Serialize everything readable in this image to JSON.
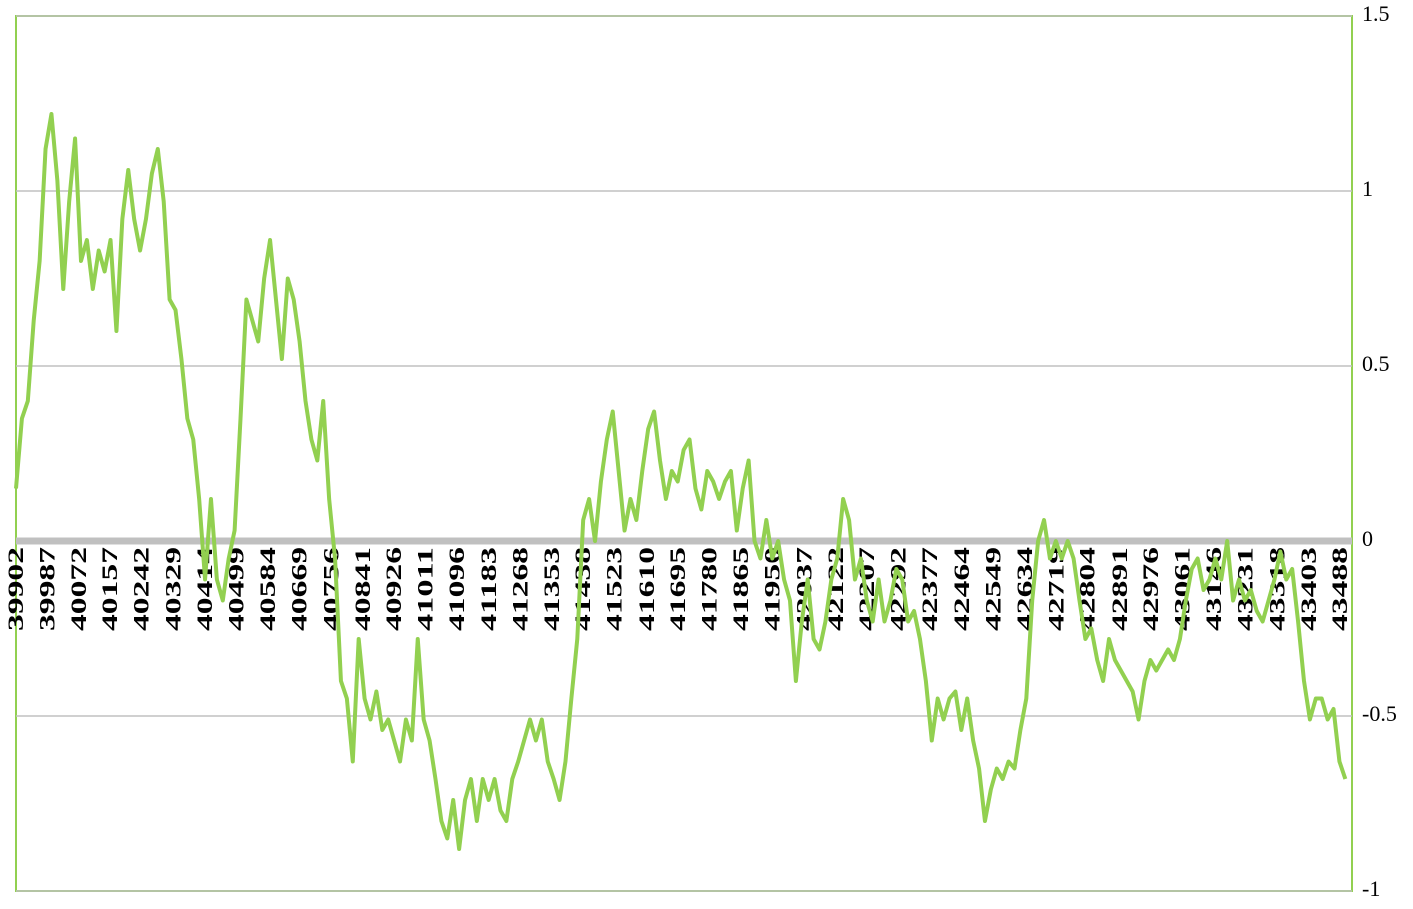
{
  "chart_data": {
    "type": "line",
    "x": [
      39902,
      39918,
      39934,
      39950,
      39966,
      39982,
      39998,
      40014,
      40030,
      40046,
      40062,
      40078,
      40094,
      40110,
      40126,
      40142,
      40158,
      40174,
      40190,
      40206,
      40222,
      40238,
      40254,
      40270,
      40286,
      40302,
      40318,
      40334,
      40350,
      40366,
      40382,
      40398,
      40414,
      40430,
      40446,
      40462,
      40478,
      40494,
      40510,
      40526,
      40542,
      40558,
      40574,
      40590,
      40606,
      40622,
      40638,
      40654,
      40670,
      40686,
      40702,
      40718,
      40734,
      40750,
      40766,
      40782,
      40798,
      40814,
      40830,
      40846,
      40862,
      40878,
      40894,
      40910,
      40926,
      40942,
      40958,
      40974,
      40990,
      41006,
      41022,
      41038,
      41054,
      41070,
      41086,
      41102,
      41118,
      41134,
      41150,
      41166,
      41182,
      41198,
      41214,
      41230,
      41246,
      41262,
      41278,
      41294,
      41310,
      41326,
      41342,
      41358,
      41374,
      41390,
      41406,
      41422,
      41438,
      41454,
      41470,
      41486,
      41502,
      41518,
      41534,
      41550,
      41566,
      41582,
      41598,
      41614,
      41630,
      41646,
      41662,
      41678,
      41694,
      41710,
      41726,
      41742,
      41758,
      41774,
      41790,
      41806,
      41822,
      41838,
      41854,
      41870,
      41886,
      41902,
      41918,
      41934,
      41950,
      41966,
      41982,
      41998,
      42014,
      42030,
      42046,
      42062,
      42078,
      42094,
      42110,
      42126,
      42142,
      42158,
      42174,
      42190,
      42206,
      42222,
      42238,
      42254,
      42270,
      42286,
      42302,
      42318,
      42334,
      42350,
      42366,
      42382,
      42398,
      42414,
      42430,
      42446,
      42462,
      42478,
      42494,
      42510,
      42526,
      42542,
      42558,
      42574,
      42590,
      42606,
      42622,
      42638,
      42654,
      42670,
      42686,
      42702,
      42718,
      42734,
      42750,
      42766,
      42782,
      42798,
      42814,
      42830,
      42846,
      42862,
      42878,
      42894,
      42910,
      42926,
      42942,
      42958,
      42974,
      42990,
      43006,
      43022,
      43038,
      43054,
      43070,
      43086,
      43102,
      43118,
      43134,
      43150,
      43166,
      43182,
      43198,
      43214,
      43230,
      43246,
      43262,
      43278,
      43294,
      43310,
      43326,
      43342,
      43358,
      43374,
      43390,
      43406,
      43422,
      43438,
      43454,
      43470,
      43486,
      43502
    ],
    "series": [
      {
        "color": "#92d050",
        "values": [
          0.15,
          0.35,
          0.4,
          0.63,
          0.8,
          1.12,
          1.22,
          1.03,
          0.72,
          0.97,
          1.15,
          0.8,
          0.86,
          0.72,
          0.83,
          0.77,
          0.86,
          0.6,
          0.92,
          1.06,
          0.92,
          0.83,
          0.92,
          1.05,
          1.12,
          0.97,
          0.69,
          0.66,
          0.52,
          0.35,
          0.29,
          0.12,
          -0.11,
          0.12,
          -0.11,
          -0.17,
          -0.05,
          0.03,
          0.35,
          0.69,
          0.63,
          0.57,
          0.75,
          0.86,
          0.69,
          0.52,
          0.75,
          0.69,
          0.57,
          0.4,
          0.29,
          0.23,
          0.4,
          0.12,
          -0.05,
          -0.4,
          -0.45,
          -0.63,
          -0.28,
          -0.45,
          -0.51,
          -0.43,
          -0.54,
          -0.51,
          -0.57,
          -0.63,
          -0.51,
          -0.57,
          -0.28,
          -0.51,
          -0.57,
          -0.68,
          -0.8,
          -0.85,
          -0.74,
          -0.88,
          -0.74,
          -0.68,
          -0.8,
          -0.68,
          -0.74,
          -0.68,
          -0.77,
          -0.8,
          -0.68,
          -0.63,
          -0.57,
          -0.51,
          -0.57,
          -0.51,
          -0.63,
          -0.68,
          -0.74,
          -0.63,
          -0.45,
          -0.28,
          0.06,
          0.12,
          0,
          0.17,
          0.29,
          0.37,
          0.2,
          0.03,
          0.12,
          0.06,
          0.2,
          0.32,
          0.37,
          0.23,
          0.12,
          0.2,
          0.17,
          0.26,
          0.29,
          0.15,
          0.09,
          0.2,
          0.17,
          0.12,
          0.17,
          0.2,
          0.03,
          0.15,
          0.23,
          0,
          -0.05,
          0.06,
          -0.05,
          0,
          -0.11,
          -0.17,
          -0.4,
          -0.23,
          -0.11,
          -0.28,
          -0.31,
          -0.23,
          -0.11,
          -0.05,
          0.12,
          0.06,
          -0.11,
          -0.05,
          -0.17,
          -0.23,
          -0.11,
          -0.23,
          -0.17,
          -0.08,
          -0.11,
          -0.23,
          -0.2,
          -0.28,
          -0.4,
          -0.57,
          -0.45,
          -0.51,
          -0.45,
          -0.43,
          -0.54,
          -0.45,
          -0.57,
          -0.65,
          -0.8,
          -0.71,
          -0.65,
          -0.68,
          -0.63,
          -0.65,
          -0.54,
          -0.45,
          -0.17,
          0,
          0.06,
          -0.05,
          0,
          -0.05,
          0,
          -0.05,
          -0.17,
          -0.28,
          -0.25,
          -0.34,
          -0.4,
          -0.28,
          -0.34,
          -0.37,
          -0.4,
          -0.43,
          -0.51,
          -0.4,
          -0.34,
          -0.37,
          -0.34,
          -0.31,
          -0.34,
          -0.28,
          -0.17,
          -0.08,
          -0.05,
          -0.14,
          -0.11,
          -0.05,
          -0.11,
          0,
          -0.17,
          -0.11,
          -0.17,
          -0.14,
          -0.2,
          -0.23,
          -0.17,
          -0.11,
          -0.03,
          -0.11,
          -0.08,
          -0.23,
          -0.4,
          -0.51,
          -0.45,
          -0.45,
          -0.51,
          -0.48,
          -0.63,
          -0.68
        ]
      }
    ],
    "xlim": [
      39902,
      43520
    ],
    "xticks": [
      39902,
      39987,
      40072,
      40157,
      40242,
      40329,
      40414,
      40499,
      40584,
      40669,
      40756,
      40841,
      40926,
      41011,
      41096,
      41183,
      41268,
      41353,
      41438,
      41523,
      41610,
      41695,
      41780,
      41865,
      41950,
      42037,
      42122,
      42207,
      42292,
      42377,
      42464,
      42549,
      42634,
      42719,
      42804,
      42891,
      42976,
      43061,
      43146,
      43231,
      43318,
      43403,
      43488
    ],
    "ylim": [
      -1,
      1.5
    ],
    "yticks": [
      1.5,
      1,
      0.5,
      0,
      -0.5,
      -1
    ],
    "grid": true
  }
}
